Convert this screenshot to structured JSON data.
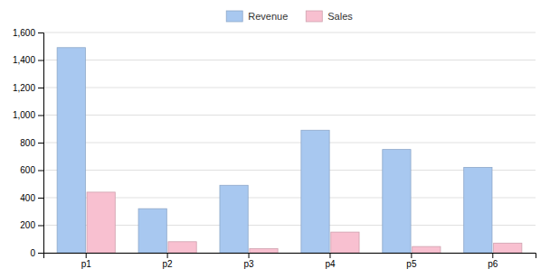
{
  "chart_data": {
    "type": "bar",
    "categories": [
      "p1",
      "p2",
      "p3",
      "p4",
      "p5",
      "p6"
    ],
    "series": [
      {
        "name": "Revenue",
        "color": "#a8c8f0",
        "values": [
          1490,
          320,
          490,
          890,
          750,
          620
        ]
      },
      {
        "name": "Sales",
        "color": "#f8c0d0",
        "values": [
          440,
          80,
          30,
          150,
          45,
          70
        ]
      }
    ],
    "ylim": [
      0,
      1600
    ],
    "yticks": [
      0,
      200,
      400,
      600,
      800,
      {
        "value": 1000,
        "label": "1,000"
      },
      {
        "value": 1200,
        "label": "1,200"
      },
      {
        "value": 1400,
        "label": "1,400"
      },
      {
        "value": 1600,
        "label": "1,600"
      }
    ],
    "grid": true,
    "legend": "top"
  }
}
